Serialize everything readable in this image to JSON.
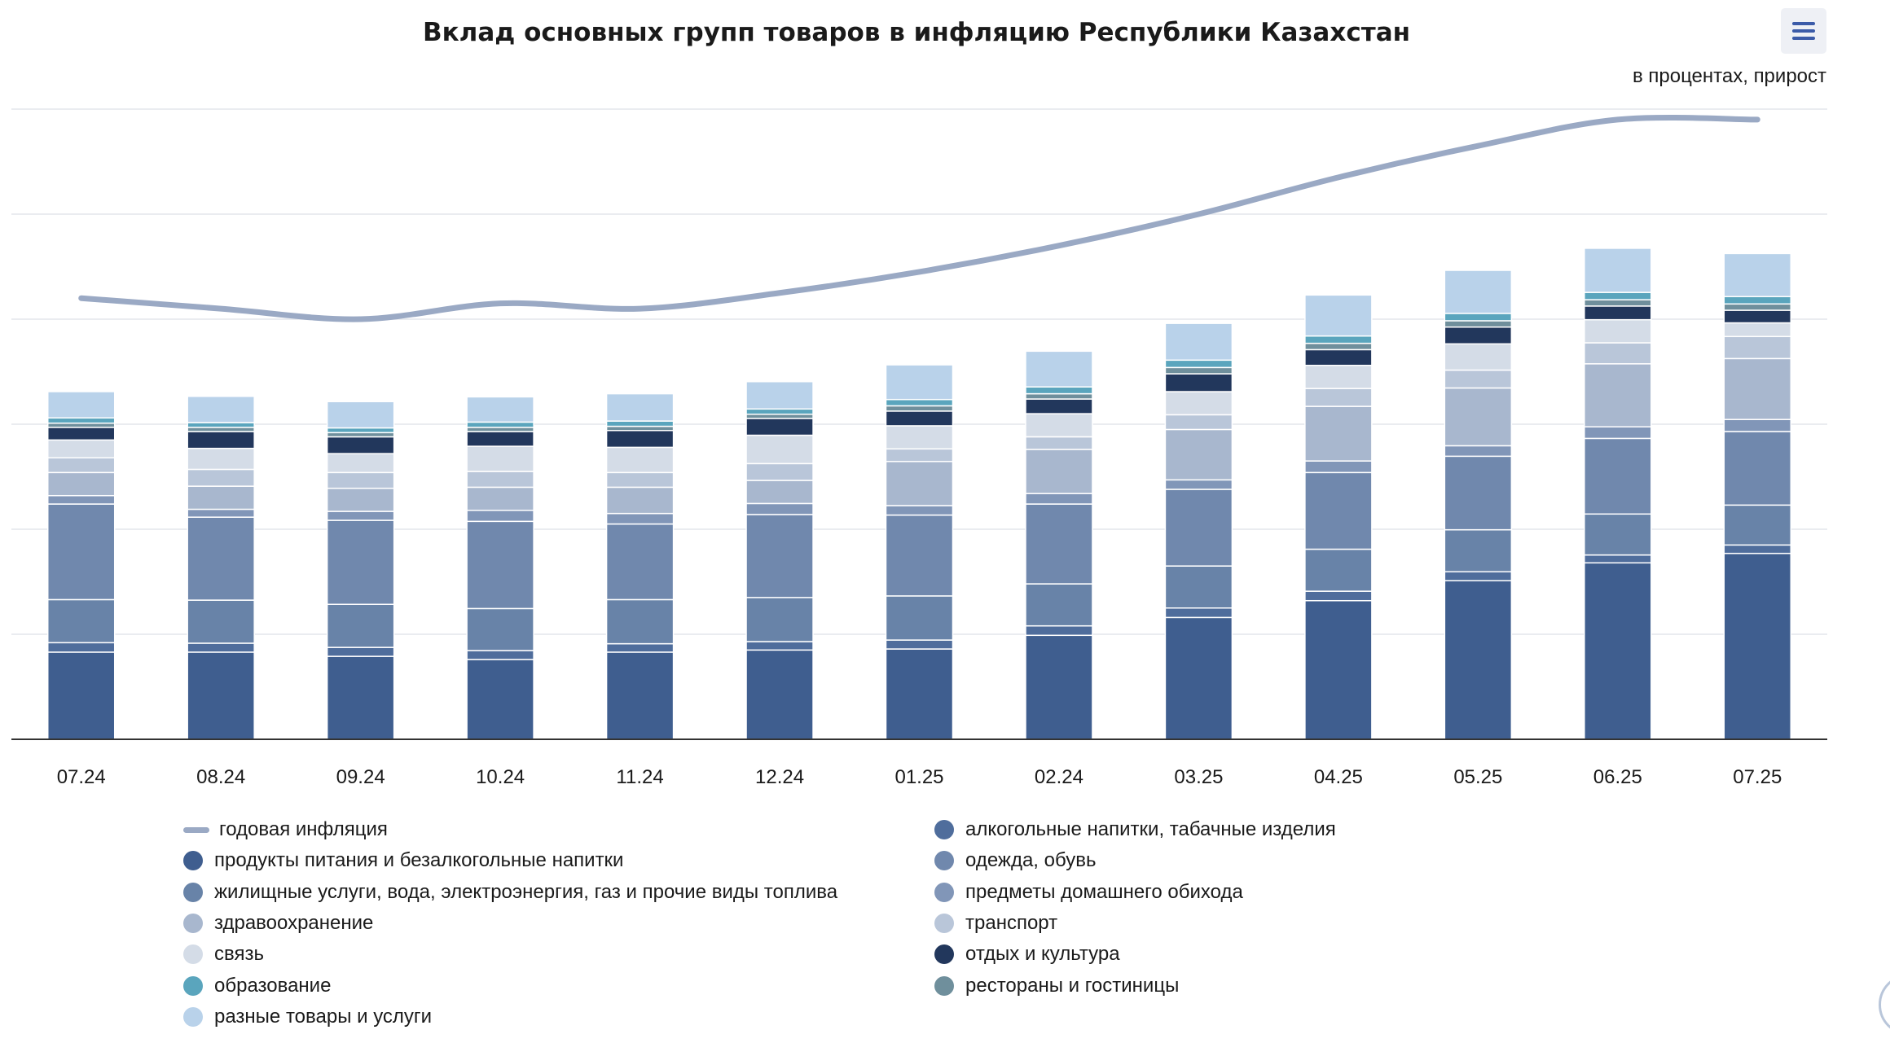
{
  "chart_data": {
    "type": "bar",
    "title": "Вклад основных групп товаров в инфляцию Республики Казахстан",
    "unit_note": "в процентах, прирост",
    "categories": [
      "07.24",
      "08.24",
      "09.24",
      "10.24",
      "11.24",
      "12.24",
      "01.25",
      "02.24",
      "03.25",
      "04.25",
      "05.25",
      "06.25",
      "07.25"
    ],
    "ylim": [
      0,
      12
    ],
    "grid": true,
    "legend_position": "bottom",
    "line_series": {
      "name": "годовая инфляция",
      "color": "#9aa9c4",
      "values": [
        8.4,
        8.2,
        8.0,
        8.3,
        8.2,
        8.5,
        8.9,
        9.4,
        10.0,
        10.7,
        11.3,
        11.8,
        11.8
      ]
    },
    "series": [
      {
        "name": "продукты питания и безалкогольные напитки",
        "color": "#3f5e8f",
        "values": [
          1.66,
          1.66,
          1.58,
          1.52,
          1.66,
          1.7,
          1.72,
          1.98,
          2.32,
          2.64,
          3.02,
          3.36,
          3.54
        ]
      },
      {
        "name": "алкогольные напитки, табачные изделия",
        "color": "#4f6d9c",
        "values": [
          0.18,
          0.17,
          0.17,
          0.17,
          0.16,
          0.16,
          0.17,
          0.18,
          0.18,
          0.18,
          0.17,
          0.15,
          0.16
        ]
      },
      {
        "name": "жилищные услуги, вода, электроэнергия, газ и прочие виды топлива",
        "color": "#6883a8",
        "values": [
          0.82,
          0.82,
          0.82,
          0.8,
          0.84,
          0.84,
          0.84,
          0.8,
          0.8,
          0.8,
          0.8,
          0.78,
          0.76
        ]
      },
      {
        "name": "одежда, обувь",
        "color": "#7088ad",
        "values": [
          1.82,
          1.58,
          1.6,
          1.66,
          1.44,
          1.58,
          1.54,
          1.52,
          1.46,
          1.46,
          1.4,
          1.44,
          1.4
        ]
      },
      {
        "name": "предметы домашнего обихода",
        "color": "#8196b8",
        "values": [
          0.16,
          0.15,
          0.17,
          0.21,
          0.2,
          0.21,
          0.18,
          0.2,
          0.18,
          0.22,
          0.2,
          0.22,
          0.23
        ]
      },
      {
        "name": "здравоохранение",
        "color": "#a8b7ce",
        "values": [
          0.44,
          0.44,
          0.44,
          0.44,
          0.5,
          0.44,
          0.84,
          0.84,
          0.96,
          1.04,
          1.1,
          1.2,
          1.16
        ]
      },
      {
        "name": "транспорт",
        "color": "#b9c6d9",
        "values": [
          0.28,
          0.32,
          0.3,
          0.3,
          0.28,
          0.32,
          0.24,
          0.24,
          0.28,
          0.34,
          0.34,
          0.4,
          0.42
        ]
      },
      {
        "name": "связь",
        "color": "#d4dce7",
        "values": [
          0.34,
          0.4,
          0.36,
          0.48,
          0.48,
          0.54,
          0.44,
          0.44,
          0.44,
          0.44,
          0.5,
          0.44,
          0.26
        ]
      },
      {
        "name": "отдых и культура",
        "color": "#22375c",
        "values": [
          0.24,
          0.32,
          0.32,
          0.28,
          0.32,
          0.32,
          0.28,
          0.28,
          0.34,
          0.3,
          0.32,
          0.26,
          0.24
        ]
      },
      {
        "name": "рестораны и гостиницы",
        "color": "#6f8f9c",
        "values": [
          0.08,
          0.08,
          0.08,
          0.08,
          0.08,
          0.08,
          0.1,
          0.1,
          0.12,
          0.12,
          0.12,
          0.12,
          0.12
        ]
      },
      {
        "name": "образование",
        "color": "#5aa5bd",
        "values": [
          0.1,
          0.09,
          0.09,
          0.1,
          0.1,
          0.1,
          0.12,
          0.13,
          0.14,
          0.14,
          0.14,
          0.14,
          0.14
        ]
      },
      {
        "name": "разные товары и услуги",
        "color": "#b9d2ea",
        "values": [
          0.5,
          0.5,
          0.5,
          0.48,
          0.52,
          0.52,
          0.66,
          0.68,
          0.7,
          0.78,
          0.82,
          0.84,
          0.82
        ]
      }
    ]
  },
  "legend_order": [
    "line",
    "продукты питания и безалкогольные напитки",
    "жилищные услуги, вода, электроэнергия, газ и прочие виды топлива",
    "здравоохранение",
    "связь",
    "образование",
    "разные товары и услуги",
    "алкогольные напитки, табачные изделия",
    "одежда, обувь",
    "предметы домашнего обихода",
    "транспорт",
    "отдых и культура",
    "рестораны и гостиницы"
  ],
  "menu": {
    "icon": "hamburger-menu-icon",
    "accent": "#3b5ba8"
  }
}
